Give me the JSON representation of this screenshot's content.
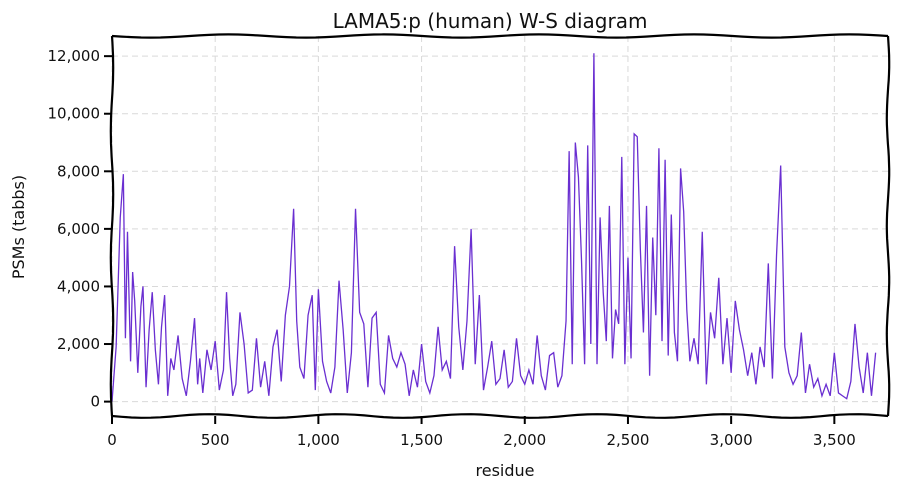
{
  "chart_data": {
    "type": "line",
    "title": "LAMA5:p (human) W-S diagram",
    "xlabel": "residue",
    "ylabel": "PSMs (tabbs)",
    "xlim": [
      0,
      3760
    ],
    "ylim": [
      -500,
      12700
    ],
    "x_ticks": [
      0,
      500,
      1000,
      1500,
      2000,
      2500,
      3000,
      3500
    ],
    "x_tick_labels": [
      "0",
      "500",
      "1,000",
      "1,500",
      "2,000",
      "2,500",
      "3,000",
      "3,500"
    ],
    "y_ticks": [
      0,
      2000,
      4000,
      6000,
      8000,
      10000,
      12000
    ],
    "y_tick_labels": [
      "0",
      "2,000",
      "4,000",
      "6,000",
      "8,000",
      "10,000",
      "12,000"
    ],
    "grid": true,
    "legend": "none",
    "color": "#6a2fd1",
    "series": [
      {
        "x": [
          0,
          20,
          40,
          55,
          65,
          75,
          90,
          100,
          110,
          125,
          140,
          150,
          165,
          180,
          195,
          210,
          225,
          240,
          255,
          270,
          285,
          300,
          320,
          340,
          360,
          380,
          400,
          415,
          425,
          440,
          460,
          480,
          500,
          520,
          540,
          555,
          570,
          585,
          600,
          620,
          640,
          660,
          680,
          700,
          720,
          740,
          760,
          780,
          800,
          820,
          840,
          860,
          880,
          895,
          910,
          930,
          950,
          970,
          985,
          1000,
          1020,
          1040,
          1060,
          1080,
          1100,
          1120,
          1140,
          1160,
          1180,
          1200,
          1220,
          1240,
          1260,
          1280,
          1300,
          1320,
          1340,
          1360,
          1380,
          1400,
          1420,
          1440,
          1460,
          1480,
          1500,
          1520,
          1540,
          1560,
          1580,
          1600,
          1620,
          1640,
          1660,
          1680,
          1700,
          1720,
          1740,
          1760,
          1780,
          1800,
          1820,
          1840,
          1860,
          1880,
          1900,
          1920,
          1940,
          1960,
          1980,
          2000,
          2020,
          2040,
          2060,
          2080,
          2100,
          2120,
          2140,
          2160,
          2180,
          2200,
          2215,
          2230,
          2245,
          2260,
          2275,
          2290,
          2305,
          2320,
          2335,
          2350,
          2365,
          2380,
          2395,
          2410,
          2425,
          2440,
          2455,
          2470,
          2485,
          2500,
          2515,
          2530,
          2545,
          2560,
          2575,
          2590,
          2605,
          2620,
          2635,
          2650,
          2665,
          2680,
          2695,
          2710,
          2725,
          2740,
          2755,
          2770,
          2785,
          2800,
          2820,
          2840,
          2860,
          2880,
          2900,
          2920,
          2940,
          2960,
          2980,
          3000,
          3020,
          3040,
          3060,
          3080,
          3100,
          3120,
          3140,
          3160,
          3180,
          3200,
          3220,
          3240,
          3260,
          3280,
          3300,
          3320,
          3340,
          3360,
          3380,
          3400,
          3420,
          3440,
          3460,
          3480,
          3500,
          3520,
          3540,
          3560,
          3580,
          3600,
          3620,
          3640,
          3660,
          3680,
          3700
        ],
        "y": [
          0,
          1900,
          6400,
          7900,
          2200,
          5900,
          1400,
          4500,
          3500,
          1000,
          3300,
          4000,
          500,
          2500,
          3800,
          1800,
          600,
          2600,
          3700,
          200,
          1500,
          1100,
          2300,
          800,
          200,
          1400,
          2900,
          600,
          1500,
          300,
          1800,
          1100,
          2100,
          400,
          1100,
          3800,
          1500,
          200,
          600,
          3100,
          2000,
          300,
          400,
          2200,
          500,
          1400,
          200,
          1900,
          2500,
          700,
          3000,
          4000,
          6700,
          2800,
          1200,
          800,
          3000,
          3700,
          400,
          3900,
          1400,
          700,
          300,
          1200,
          4200,
          2500,
          300,
          1700,
          6700,
          3100,
          2700,
          500,
          2900,
          3100,
          600,
          300,
          2300,
          1500,
          1200,
          1700,
          1300,
          200,
          1100,
          500,
          2000,
          700,
          300,
          900,
          2600,
          1100,
          1400,
          800,
          5400,
          2600,
          1100,
          2800,
          6000,
          1300,
          3700,
          400,
          1200,
          2100,
          600,
          800,
          1800,
          500,
          700,
          2200,
          900,
          600,
          1100,
          600,
          2300,
          900,
          400,
          1600,
          1700,
          500,
          900,
          2800,
          8700,
          1300,
          9000,
          7800,
          4900,
          1300,
          8900,
          2000,
          12100,
          1300,
          6400,
          3800,
          2100,
          6800,
          1500,
          3200,
          2700,
          8500,
          1300,
          5000,
          1500,
          9300,
          9200,
          5300,
          2400,
          6800,
          900,
          5700,
          3000,
          8800,
          2100,
          8400,
          1600,
          6500,
          2400,
          1400,
          8100,
          6600,
          3200,
          1400,
          2200,
          1300,
          5900,
          600,
          3100,
          2200,
          4300,
          1300,
          2900,
          1000,
          3500,
          2500,
          1800,
          900,
          1700,
          600,
          1900,
          1200,
          4800,
          800,
          5100,
          8200,
          1900,
          1000,
          600,
          900,
          2400,
          300,
          1300,
          500,
          800,
          200,
          600,
          200,
          1700,
          300,
          200,
          100,
          700,
          2700,
          1200,
          300,
          1700,
          200,
          1700
        ]
      }
    ]
  }
}
